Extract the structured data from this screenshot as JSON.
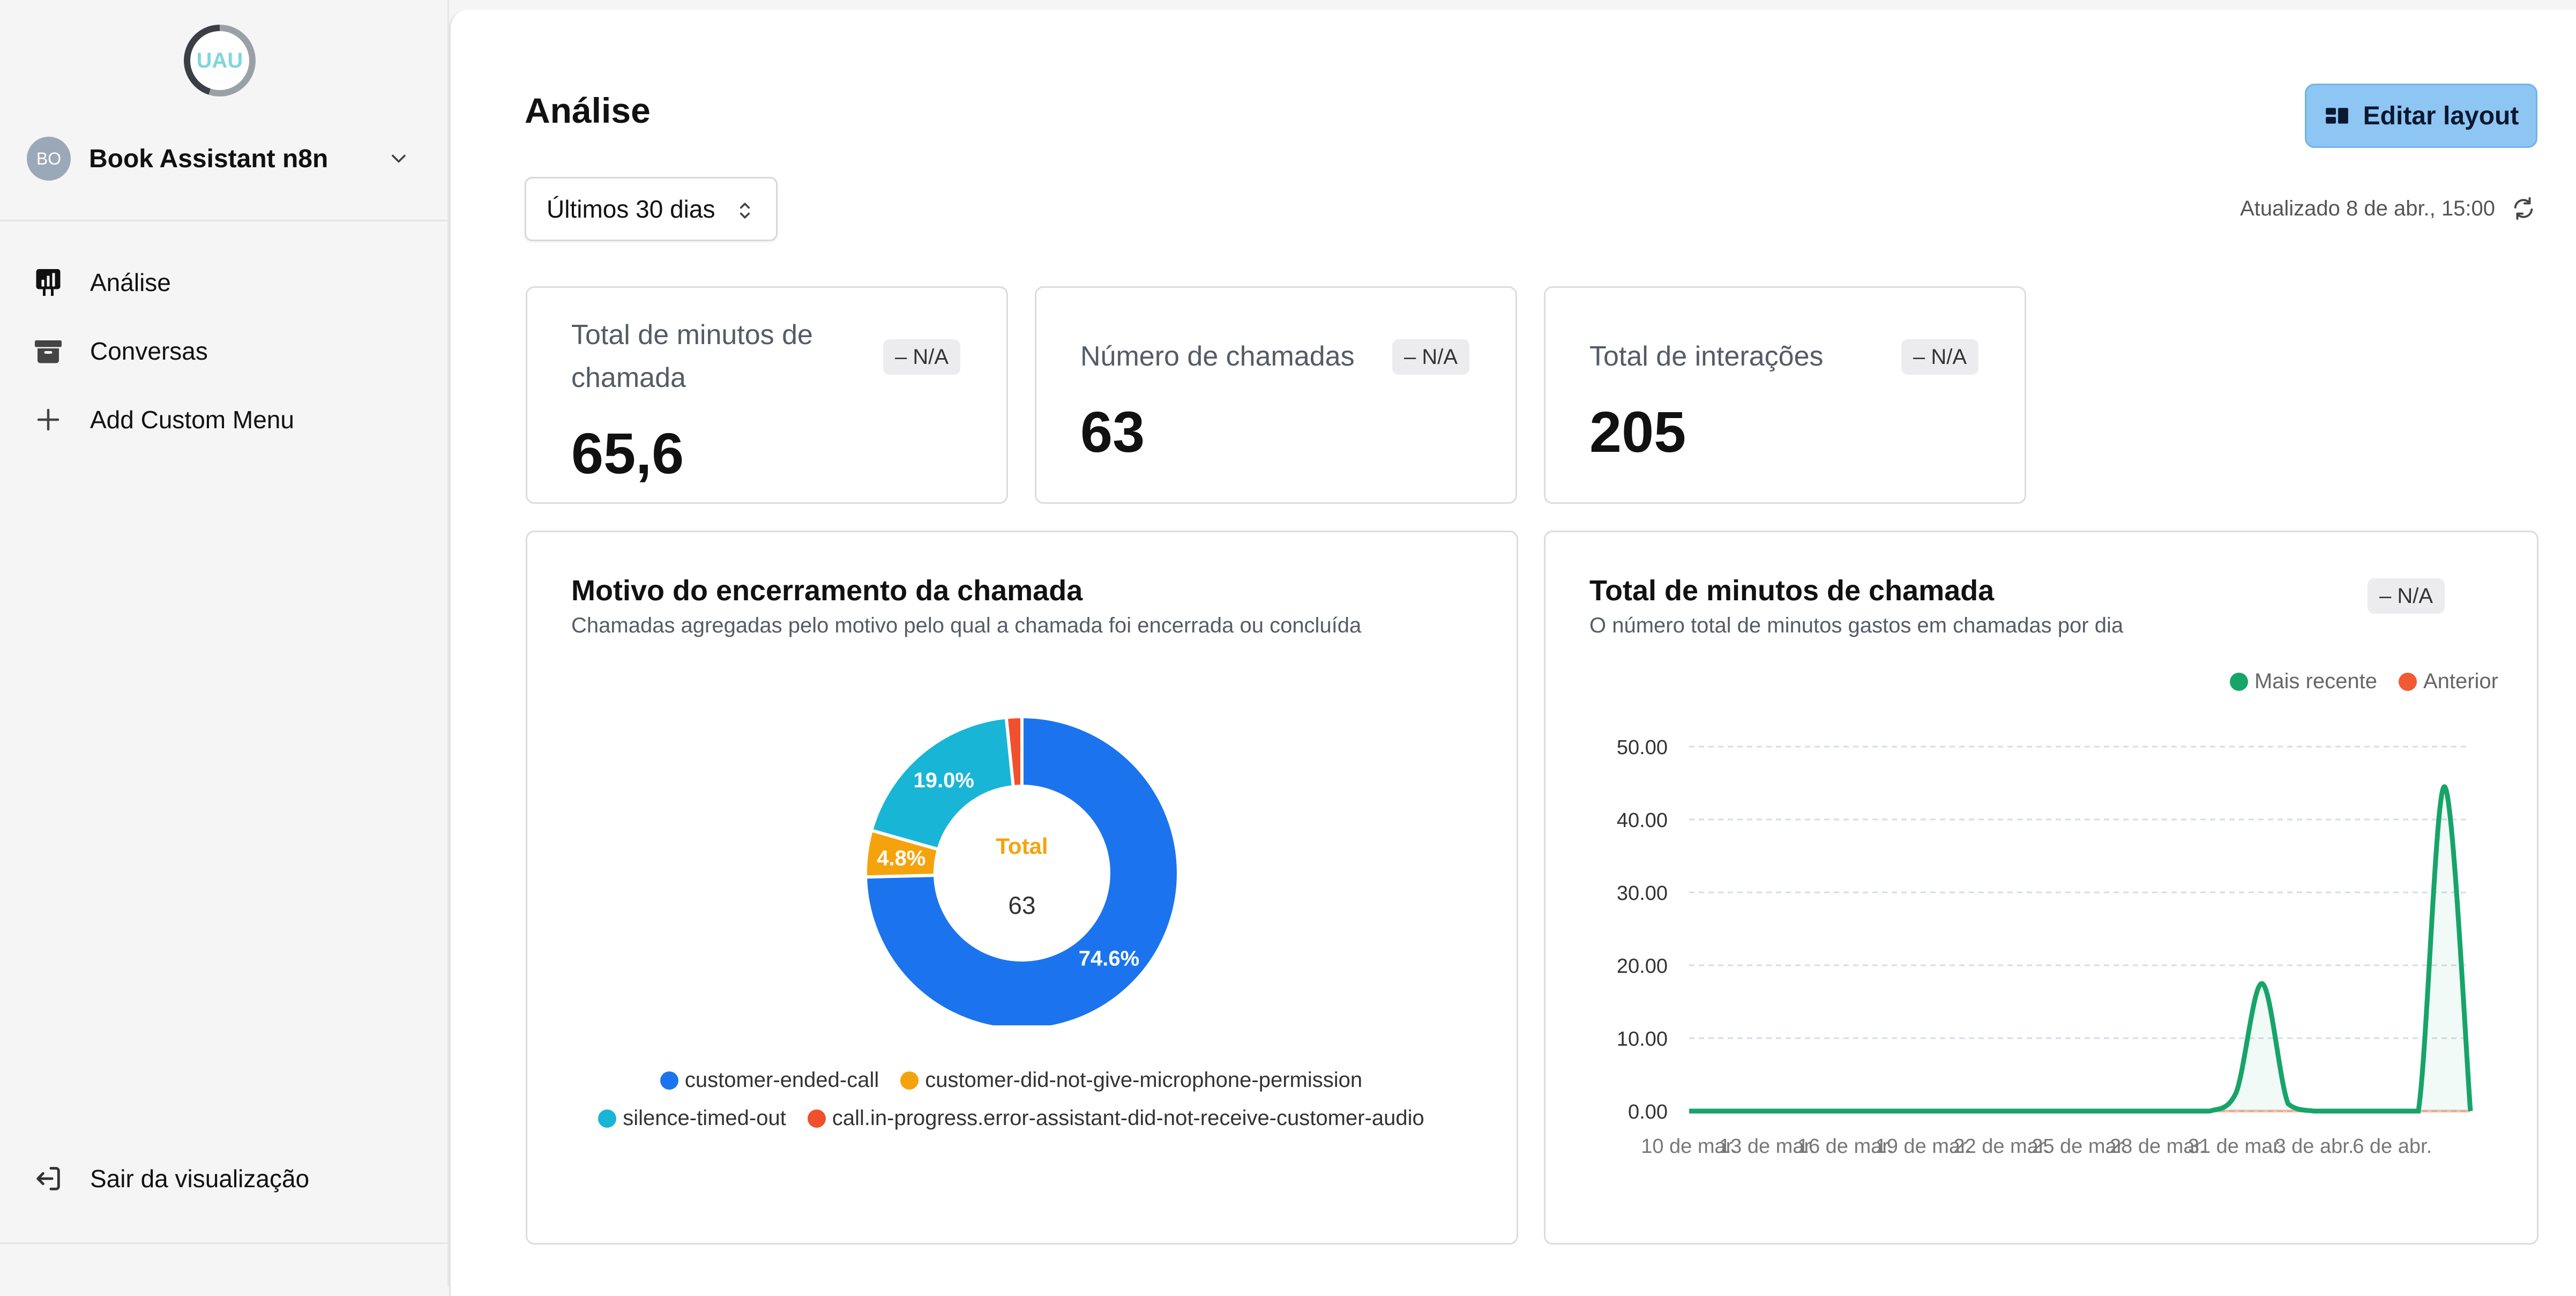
{
  "sidebar": {
    "logo_text": "UAU",
    "org": {
      "initials": "BO",
      "name": "Book Assistant n8n"
    },
    "items": [
      {
        "label": "Análise",
        "icon": "analytics-icon"
      },
      {
        "label": "Conversas",
        "icon": "archive-icon"
      },
      {
        "label": "Add Custom Menu",
        "icon": "plus-icon"
      }
    ],
    "logout_label": "Sair da visualização"
  },
  "header": {
    "title": "Análise",
    "edit_label": "Editar layout",
    "range_label": "Últimos 30 dias",
    "updated_label": "Atualizado 8 de abr., 15:00"
  },
  "stats": [
    {
      "label_line1": "Total de minutos de",
      "label_line2": "chamada",
      "badge": "– N/A",
      "value": "65,6"
    },
    {
      "label_line1": "Número de chamadas",
      "label_line2": "",
      "badge": "– N/A",
      "value": "63"
    },
    {
      "label_line1": "Total de interações",
      "label_line2": "",
      "badge": "– N/A",
      "value": "205"
    }
  ],
  "donut_card": {
    "title": "Motivo do encerramento da chamada",
    "subtitle": "Chamadas agregadas pelo motivo pelo qual a chamada foi encerrada ou concluída",
    "center_label": "Total",
    "center_value": "63"
  },
  "line_card": {
    "title": "Total de minutos de chamada",
    "subtitle": "O número total de minutos gastos em chamadas por dia",
    "badge": "– N/A"
  },
  "colors": {
    "accent": "#8ec6f3",
    "blue": "#1b74ee",
    "orange": "#f5a30c",
    "cyan": "#19b5d6",
    "red": "#f0502d",
    "green": "#17a468",
    "prev_red": "#f15a32"
  },
  "chart_data": [
    {
      "type": "pie",
      "title": "Motivo do encerramento da chamada",
      "center": {
        "label": "Total",
        "value": "63"
      },
      "slices": [
        {
          "name": "customer-ended-call",
          "value": 74.6,
          "label": "74.6%",
          "color": "#1b74ee"
        },
        {
          "name": "customer-did-not-give-microphone-permission",
          "value": 4.8,
          "label": "4.8%",
          "color": "#f5a30c"
        },
        {
          "name": "silence-timed-out",
          "value": 19.0,
          "label": "19.0%",
          "color": "#19b5d6"
        },
        {
          "name": "call.in-progress.error-assistant-did-not-receive-customer-audio",
          "value": 1.6,
          "label": "",
          "color": "#f0502d"
        }
      ],
      "legend_placement": "bottom"
    },
    {
      "type": "line",
      "title": "Total de minutos de chamada",
      "x_tick_labels": [
        "10 de mar.",
        "13 de mar.",
        "16 de mar.",
        "19 de mar.",
        "22 de mar.",
        "25 de mar.",
        "28 de mar.",
        "31 de mar.",
        "3 de abr.",
        "6 de abr."
      ],
      "x_days": 30,
      "ylim": [
        0,
        50
      ],
      "y_ticks": [
        "0.00",
        "10.00",
        "20.00",
        "30.00",
        "40.00",
        "50.00"
      ],
      "grid": true,
      "legend_placement": "top-right",
      "series": [
        {
          "name": "Mais recente",
          "color": "#17a468",
          "values": [
            0,
            0,
            0,
            0,
            0,
            0,
            0,
            0,
            0,
            0,
            0,
            0,
            0,
            0,
            0,
            0,
            0,
            0,
            0,
            0,
            0,
            2.5,
            17.5,
            1,
            0,
            0,
            0,
            0,
            0,
            44.5,
            0
          ]
        },
        {
          "name": "Anterior",
          "color": "#f15a32",
          "values": [
            0,
            0,
            0,
            0,
            0,
            0,
            0,
            0,
            0,
            0,
            0,
            0,
            0,
            0,
            0,
            0,
            0,
            0,
            0,
            0,
            0,
            0,
            0,
            0,
            0,
            0,
            0,
            0,
            0,
            0,
            0
          ]
        }
      ]
    }
  ]
}
